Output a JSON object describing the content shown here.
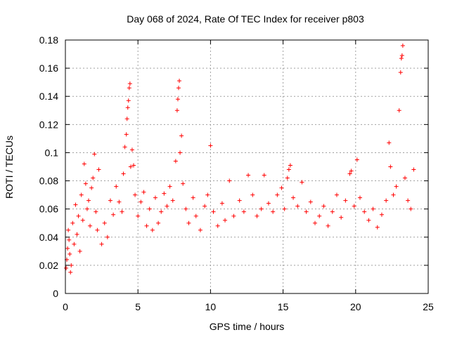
{
  "chart_data": {
    "type": "scatter",
    "title": "Day 068 of 2024, Rate Of TEC Index for receiver p803",
    "xlabel": "GPS time / hours",
    "ylabel": "ROTI / TECUs",
    "xlim": [
      0,
      25
    ],
    "ylim": [
      0,
      0.18
    ],
    "x_ticks": [
      0,
      5,
      10,
      15,
      20,
      25
    ],
    "x_tick_labels": [
      "0",
      "5",
      "10",
      "15",
      "20",
      "25"
    ],
    "y_ticks": [
      0,
      0.02,
      0.04,
      0.06,
      0.08,
      0.1,
      0.12,
      0.14,
      0.16,
      0.18
    ],
    "y_tick_labels": [
      "0",
      "0.02",
      "0.04",
      "0.06",
      "0.08",
      "0.1",
      "0.12",
      "0.14",
      "0.16",
      "0.18"
    ],
    "grid": true,
    "marker": "+",
    "color": "#ff0000",
    "series": [
      {
        "name": "ROTI",
        "points": [
          [
            0.05,
            0.018
          ],
          [
            0.1,
            0.024
          ],
          [
            0.15,
            0.032
          ],
          [
            0.2,
            0.045
          ],
          [
            0.25,
            0.038
          ],
          [
            0.3,
            0.028
          ],
          [
            0.35,
            0.015
          ],
          [
            0.4,
            0.02
          ],
          [
            0.5,
            0.05
          ],
          [
            0.6,
            0.035
          ],
          [
            0.7,
            0.063
          ],
          [
            0.8,
            0.042
          ],
          [
            0.9,
            0.055
          ],
          [
            1.0,
            0.03
          ],
          [
            1.1,
            0.07
          ],
          [
            1.2,
            0.052
          ],
          [
            1.3,
            0.092
          ],
          [
            1.4,
            0.078
          ],
          [
            1.5,
            0.06
          ],
          [
            1.6,
            0.066
          ],
          [
            1.7,
            0.048
          ],
          [
            1.8,
            0.075
          ],
          [
            1.9,
            0.082
          ],
          [
            2.0,
            0.099
          ],
          [
            2.1,
            0.058
          ],
          [
            2.2,
            0.045
          ],
          [
            2.3,
            0.088
          ],
          [
            2.5,
            0.035
          ],
          [
            2.7,
            0.05
          ],
          [
            2.9,
            0.04
          ],
          [
            3.1,
            0.066
          ],
          [
            3.3,
            0.056
          ],
          [
            3.5,
            0.076
          ],
          [
            3.7,
            0.065
          ],
          [
            3.9,
            0.058
          ],
          [
            4.0,
            0.085
          ],
          [
            4.1,
            0.104
          ],
          [
            4.2,
            0.113
          ],
          [
            4.25,
            0.124
          ],
          [
            4.3,
            0.132
          ],
          [
            4.35,
            0.137
          ],
          [
            4.4,
            0.146
          ],
          [
            4.45,
            0.149
          ],
          [
            4.5,
            0.09
          ],
          [
            4.6,
            0.102
          ],
          [
            4.7,
            0.091
          ],
          [
            4.8,
            0.07
          ],
          [
            5.0,
            0.055
          ],
          [
            5.2,
            0.065
          ],
          [
            5.4,
            0.072
          ],
          [
            5.6,
            0.048
          ],
          [
            5.8,
            0.06
          ],
          [
            6.0,
            0.045
          ],
          [
            6.2,
            0.068
          ],
          [
            6.4,
            0.05
          ],
          [
            6.6,
            0.058
          ],
          [
            6.8,
            0.071
          ],
          [
            7.0,
            0.062
          ],
          [
            7.2,
            0.076
          ],
          [
            7.4,
            0.066
          ],
          [
            7.6,
            0.094
          ],
          [
            7.7,
            0.13
          ],
          [
            7.75,
            0.138
          ],
          [
            7.8,
            0.146
          ],
          [
            7.85,
            0.151
          ],
          [
            7.9,
            0.1
          ],
          [
            8.0,
            0.112
          ],
          [
            8.1,
            0.078
          ],
          [
            8.3,
            0.06
          ],
          [
            8.5,
            0.05
          ],
          [
            8.8,
            0.068
          ],
          [
            9.0,
            0.055
          ],
          [
            9.3,
            0.045
          ],
          [
            9.6,
            0.062
          ],
          [
            9.8,
            0.07
          ],
          [
            10.0,
            0.105
          ],
          [
            10.2,
            0.058
          ],
          [
            10.5,
            0.048
          ],
          [
            10.8,
            0.064
          ],
          [
            11.0,
            0.052
          ],
          [
            11.3,
            0.08
          ],
          [
            11.6,
            0.055
          ],
          [
            12.0,
            0.066
          ],
          [
            12.3,
            0.058
          ],
          [
            12.6,
            0.084
          ],
          [
            12.9,
            0.07
          ],
          [
            13.2,
            0.055
          ],
          [
            13.5,
            0.06
          ],
          [
            13.7,
            0.084
          ],
          [
            14.0,
            0.064
          ],
          [
            14.3,
            0.058
          ],
          [
            14.6,
            0.07
          ],
          [
            14.9,
            0.075
          ],
          [
            15.1,
            0.06
          ],
          [
            15.3,
            0.082
          ],
          [
            15.4,
            0.088
          ],
          [
            15.5,
            0.091
          ],
          [
            15.7,
            0.068
          ],
          [
            16.0,
            0.062
          ],
          [
            16.3,
            0.079
          ],
          [
            16.6,
            0.058
          ],
          [
            16.9,
            0.065
          ],
          [
            17.2,
            0.05
          ],
          [
            17.5,
            0.055
          ],
          [
            17.8,
            0.062
          ],
          [
            18.1,
            0.048
          ],
          [
            18.4,
            0.058
          ],
          [
            18.7,
            0.07
          ],
          [
            19.0,
            0.054
          ],
          [
            19.3,
            0.066
          ],
          [
            19.6,
            0.085
          ],
          [
            19.7,
            0.087
          ],
          [
            19.9,
            0.062
          ],
          [
            20.1,
            0.095
          ],
          [
            20.3,
            0.068
          ],
          [
            20.6,
            0.058
          ],
          [
            20.9,
            0.052
          ],
          [
            21.2,
            0.06
          ],
          [
            21.5,
            0.047
          ],
          [
            21.8,
            0.056
          ],
          [
            22.1,
            0.066
          ],
          [
            22.3,
            0.107
          ],
          [
            22.4,
            0.09
          ],
          [
            22.6,
            0.07
          ],
          [
            22.8,
            0.076
          ],
          [
            23.0,
            0.13
          ],
          [
            23.1,
            0.157
          ],
          [
            23.15,
            0.167
          ],
          [
            23.2,
            0.169
          ],
          [
            23.25,
            0.176
          ],
          [
            23.4,
            0.082
          ],
          [
            23.6,
            0.066
          ],
          [
            23.8,
            0.06
          ],
          [
            24.0,
            0.088
          ]
        ]
      }
    ]
  }
}
